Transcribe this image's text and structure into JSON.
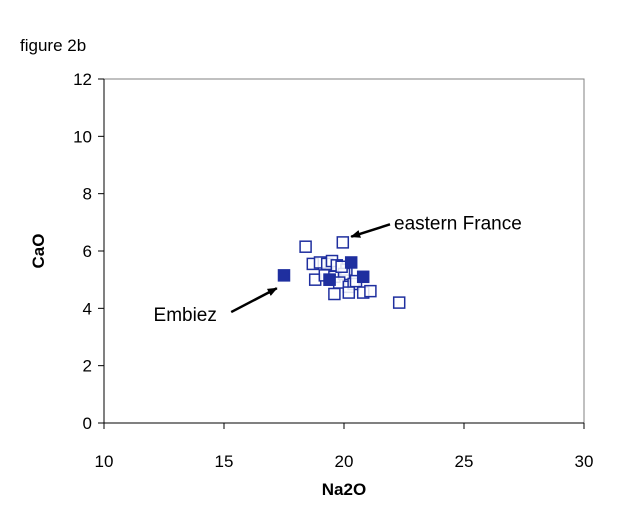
{
  "figure_label": "figure 2b",
  "chart_data": {
    "type": "scatter",
    "title": "",
    "xlabel": "Na2O",
    "ylabel": "CaO",
    "xlim": [
      10,
      30
    ],
    "ylim": [
      0,
      12
    ],
    "xticks": [
      10,
      15,
      20,
      25,
      30
    ],
    "yticks": [
      0,
      2,
      4,
      6,
      8,
      10,
      12
    ],
    "grid": false,
    "legend": "none",
    "marker_color": "#1f2f9f",
    "series": [
      {
        "marker": "filled-square",
        "x": [
          17.5,
          20.3,
          20.8,
          19.4
        ],
        "y": [
          5.15,
          5.6,
          5.1,
          5.0
        ]
      },
      {
        "marker": "open-square",
        "x": [
          18.4,
          19.95,
          18.7,
          19.0,
          19.3,
          19.5,
          19.7,
          20.1,
          18.8,
          19.2,
          19.6,
          20.0,
          19.4,
          19.8,
          20.2,
          19.6,
          20.4,
          20.8,
          21.1,
          22.3,
          20.2,
          19.9,
          20.5
        ],
        "y": [
          6.15,
          6.3,
          5.55,
          5.6,
          5.55,
          5.65,
          5.5,
          5.35,
          5.0,
          5.15,
          5.1,
          5.2,
          5.0,
          4.9,
          4.75,
          4.5,
          4.85,
          4.55,
          4.6,
          4.2,
          4.55,
          5.45,
          4.95
        ]
      }
    ],
    "annotations": [
      {
        "text": "eastern France",
        "tx": 23.0,
        "ty": 7.0,
        "ax": 20.3,
        "ay": 6.5
      },
      {
        "text": "Embiez",
        "tx": 13.8,
        "ty": 3.8,
        "ax": 17.2,
        "ay": 4.7
      }
    ]
  }
}
